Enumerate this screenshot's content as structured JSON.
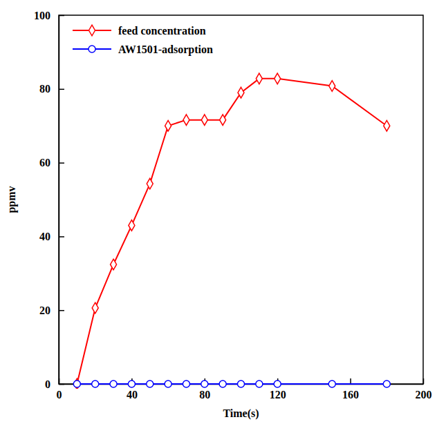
{
  "chart_data": {
    "type": "line",
    "x_label": "Time(s)",
    "y_label": "ppmv",
    "x": [
      10,
      20,
      30,
      40,
      50,
      60,
      70,
      80,
      90,
      100,
      110,
      120,
      150,
      180
    ],
    "series": [
      {
        "name": "feed concentration",
        "color": "#ff0000",
        "marker": "diamond",
        "line_style": "solid",
        "values": [
          0,
          20.6,
          32.4,
          43,
          54.3,
          70,
          71.6,
          71.6,
          71.6,
          79,
          82.8,
          82.8,
          80.8,
          70
        ]
      },
      {
        "name": "AW1501-adsorption",
        "color": "#0000ff",
        "marker": "circle",
        "line_style": "solid",
        "values": [
          0,
          0,
          0,
          0,
          0,
          0,
          0,
          0,
          0,
          0,
          0,
          0,
          0,
          0
        ]
      }
    ],
    "xlim": [
      0,
      200
    ],
    "xticks": [
      0,
      40,
      80,
      120,
      160,
      200
    ],
    "ylim": [
      0,
      100
    ],
    "yticks": [
      0,
      20,
      40,
      60,
      80,
      100
    ],
    "grid": false,
    "legend": "upper left"
  }
}
